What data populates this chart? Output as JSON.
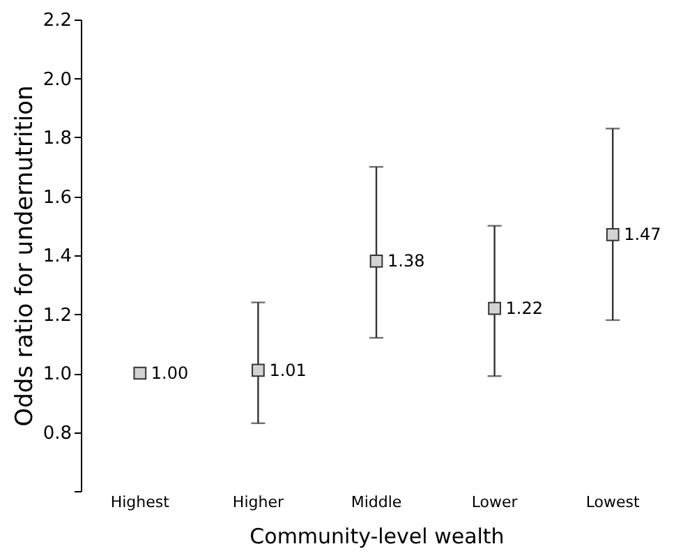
{
  "chart_data": {
    "type": "scatter",
    "xlabel": "Community-level wealth",
    "ylabel": "Odds ratio for undernutrition",
    "categories": [
      "Highest",
      "Higher",
      "Middle",
      "Lower",
      "Lowest"
    ],
    "values": [
      1.0,
      1.01,
      1.38,
      1.22,
      1.47
    ],
    "errors": [
      null,
      [
        0.83,
        1.24
      ],
      [
        1.12,
        1.7
      ],
      [
        0.99,
        1.5
      ],
      [
        1.18,
        1.83
      ]
    ],
    "color": "#d3d3d3",
    "marker": "square",
    "value_labels": [
      "1.00",
      "1.01",
      "1.38",
      "1.22",
      "1.47"
    ],
    "ylim": [
      0.6,
      2.2
    ],
    "yticks": [
      {
        "value": 0.6,
        "label": null
      },
      0.8,
      {
        "value": 1,
        "label": "1.0"
      },
      1.2,
      1.4,
      1.6,
      1.8,
      {
        "value": 2,
        "label": "2.0"
      },
      2.2
    ]
  }
}
